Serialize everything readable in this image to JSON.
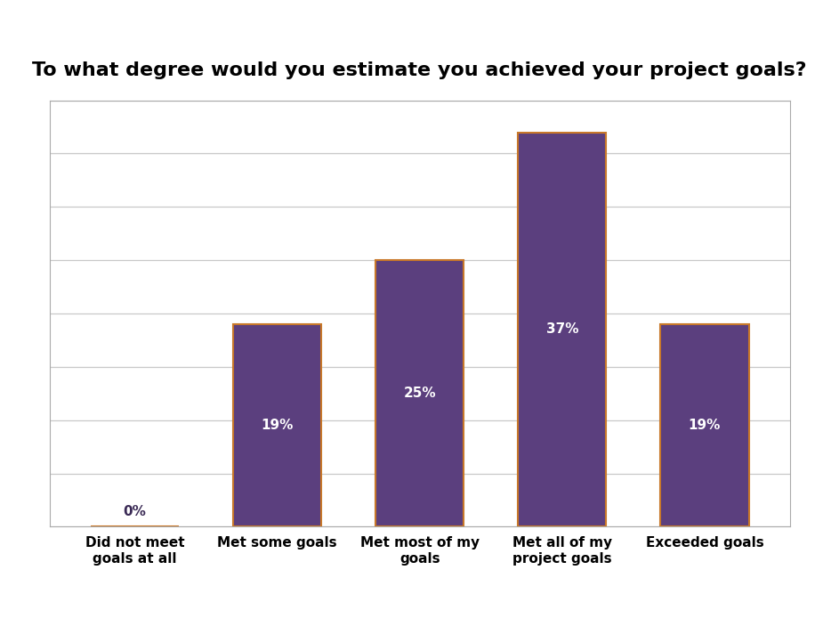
{
  "chart_data": {
    "type": "bar",
    "title": "To what degree would you estimate you achieved your project goals?",
    "categories": [
      "Did not meet goals at all",
      "Met some goals",
      "Met most of my goals",
      "Met all of my project goals",
      "Exceeded goals"
    ],
    "values": [
      0,
      19,
      25,
      37,
      19
    ],
    "value_labels": [
      "0%",
      "19%",
      "25%",
      "37%",
      "19%"
    ],
    "data_labels": true,
    "color": "#5b3f7e",
    "ylim": [
      0,
      40
    ],
    "yticks": [
      0,
      5,
      10,
      15,
      20,
      25,
      30,
      35,
      40
    ],
    "grid": true,
    "tick_labels": "x"
  }
}
